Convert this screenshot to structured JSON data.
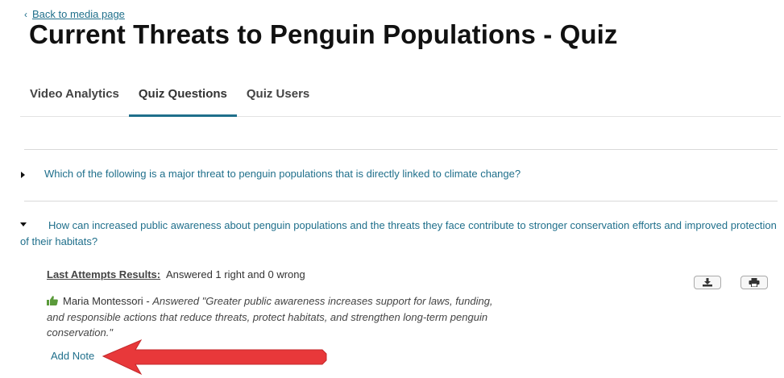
{
  "back_link": {
    "label": "Back to media page",
    "icon": "chevron-left-icon"
  },
  "page_title": "Current Threats to Penguin Populations - Quiz",
  "tabs": [
    {
      "label": "Video Analytics",
      "active": false
    },
    {
      "label": "Quiz Questions",
      "active": true
    },
    {
      "label": "Quiz Users",
      "active": false
    }
  ],
  "questions": [
    {
      "text": "Which of the following is a major threat to penguin populations that is directly linked to climate change?",
      "expanded": false
    },
    {
      "text": "How can increased public awareness about penguin populations and the threats they face contribute to stronger conservation efforts and improved protection of their habitats?",
      "expanded": true
    }
  ],
  "results": {
    "label": "Last Attempts Results:",
    "summary": "Answered 1 right and 0 wrong",
    "user_name": "Maria Montessori",
    "separator": " - ",
    "answer_text": "Answered \"Greater public awareness increases support for laws, funding, and responsible actions that reduce threats, protect habitats, and strengthen long-term penguin conservation.\"",
    "add_note_label": "Add Note"
  },
  "icons": {
    "thumb": "thumbs-up-icon",
    "download": "download-icon",
    "print": "print-icon",
    "annotation": "red-arrow-pointer"
  },
  "colors": {
    "link": "#1f6f8b",
    "tab_active_underline": "#1f6f8b",
    "thumb": "#5a9a3a",
    "arrow": "#e8383a"
  }
}
